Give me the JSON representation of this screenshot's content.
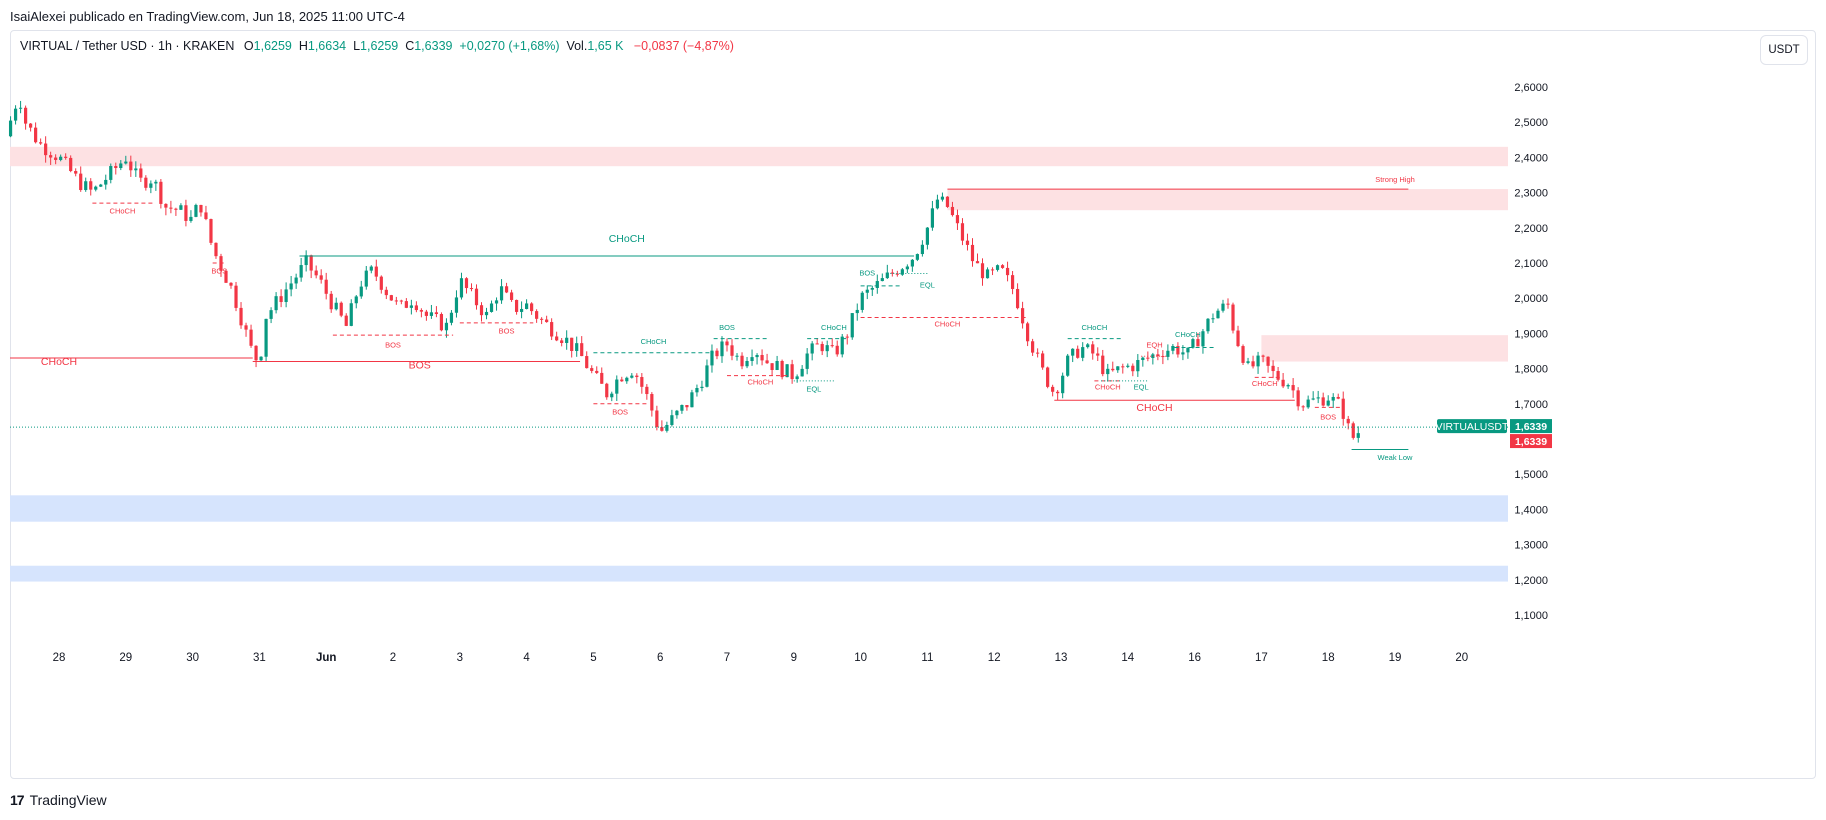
{
  "publisher": "IsaiAlexei publicado en TradingView.com, Jun 18, 2025 11:00 UTC-4",
  "legend": {
    "symbol": "VIRTUAL / Tether USD · 1h · KRAKEN",
    "o_label": "O",
    "o": "1,6259",
    "h_label": "H",
    "h": "1,6634",
    "l_label": "L",
    "l": "1,6259",
    "c_label": "C",
    "c": "1,6339",
    "change": "+0,0270 (+1,68%)",
    "vol_label": "Vol.",
    "vol": "1,65 K",
    "vol_change": "−0,0837 (−4,87%)"
  },
  "unit_button": "USDT",
  "footer": {
    "logo_glyph": "17",
    "brand": "TradingView"
  },
  "colors": {
    "up": "#089981",
    "down": "#f23645",
    "supply": "#fde1e3",
    "demand": "#d6e4fd",
    "grid": "#e0e3eb"
  },
  "chart_data": {
    "type": "candlestick",
    "ylim": [
      1.0,
      2.7
    ],
    "y_ticks": [
      {
        "value": 2.6,
        "label": "2,6000"
      },
      {
        "value": 2.5,
        "label": "2,5000"
      },
      {
        "value": 2.4,
        "label": "2,4000"
      },
      {
        "value": 2.3,
        "label": "2,3000"
      },
      {
        "value": 2.2,
        "label": "2,2000"
      },
      {
        "value": 2.1,
        "label": "2,1000"
      },
      {
        "value": 2.0,
        "label": "2,0000"
      },
      {
        "value": 1.9,
        "label": "1,9000"
      },
      {
        "value": 1.8,
        "label": "1,8000"
      },
      {
        "value": 1.7,
        "label": "1,7000"
      },
      {
        "value": 1.6,
        "label": "1,6000"
      },
      {
        "value": 1.5,
        "label": "1,5000"
      },
      {
        "value": 1.4,
        "label": "1,4000"
      },
      {
        "value": 1.3,
        "label": "1,3000"
      },
      {
        "value": 1.2,
        "label": "1,2000"
      },
      {
        "value": 1.1,
        "label": "1,1000"
      }
    ],
    "x_ticks": [
      {
        "t": 0,
        "label": "28"
      },
      {
        "t": 1,
        "label": "29"
      },
      {
        "t": 2,
        "label": "30"
      },
      {
        "t": 3,
        "label": "31"
      },
      {
        "t": 4,
        "label": "Jun"
      },
      {
        "t": 5,
        "label": "2"
      },
      {
        "t": 6,
        "label": "3"
      },
      {
        "t": 7,
        "label": "4"
      },
      {
        "t": 8,
        "label": "5"
      },
      {
        "t": 9,
        "label": "6"
      },
      {
        "t": 10,
        "label": "7"
      },
      {
        "t": 11,
        "label": "9"
      },
      {
        "t": 12,
        "label": "10"
      },
      {
        "t": 13,
        "label": "11"
      },
      {
        "t": 14,
        "label": "12"
      },
      {
        "t": 15,
        "label": "13"
      },
      {
        "t": 16,
        "label": "14"
      },
      {
        "t": 17,
        "label": "16"
      },
      {
        "t": 18,
        "label": "17"
      },
      {
        "t": 19,
        "label": "18"
      },
      {
        "t": 20,
        "label": "19"
      },
      {
        "t": 21,
        "label": "20"
      }
    ],
    "price_path": [
      [
        -0.8,
        2.46
      ],
      [
        -0.6,
        2.58
      ],
      [
        -0.5,
        2.5
      ],
      [
        -0.3,
        2.44
      ],
      [
        0.0,
        2.4
      ],
      [
        0.3,
        2.33
      ],
      [
        0.5,
        2.3
      ],
      [
        0.8,
        2.36
      ],
      [
        1.0,
        2.4
      ],
      [
        1.2,
        2.33
      ],
      [
        1.4,
        2.34
      ],
      [
        1.6,
        2.26
      ],
      [
        1.8,
        2.25
      ],
      [
        2.0,
        2.22
      ],
      [
        2.1,
        2.28
      ],
      [
        2.3,
        2.14
      ],
      [
        2.4,
        2.1
      ],
      [
        2.6,
        2.02
      ],
      [
        2.8,
        1.9
      ],
      [
        2.9,
        1.84
      ],
      [
        3.0,
        1.82
      ],
      [
        3.1,
        1.95
      ],
      [
        3.3,
        2.0
      ],
      [
        3.5,
        2.05
      ],
      [
        3.7,
        2.1
      ],
      [
        3.9,
        2.05
      ],
      [
        4.1,
        1.98
      ],
      [
        4.3,
        1.92
      ],
      [
        4.5,
        2.04
      ],
      [
        4.7,
        2.08
      ],
      [
        4.9,
        2.02
      ],
      [
        5.1,
        1.97
      ],
      [
        5.3,
        2.0
      ],
      [
        5.5,
        1.95
      ],
      [
        5.8,
        1.92
      ],
      [
        6.0,
        2.05
      ],
      [
        6.2,
        2.0
      ],
      [
        6.4,
        1.95
      ],
      [
        6.6,
        2.03
      ],
      [
        6.8,
        1.97
      ],
      [
        7.0,
        1.98
      ],
      [
        7.2,
        1.94
      ],
      [
        7.4,
        1.91
      ],
      [
        7.6,
        1.88
      ],
      [
        7.8,
        1.84
      ],
      [
        8.0,
        1.78
      ],
      [
        8.2,
        1.73
      ],
      [
        8.4,
        1.78
      ],
      [
        8.6,
        1.8
      ],
      [
        8.8,
        1.72
      ],
      [
        9.0,
        1.62
      ],
      [
        9.2,
        1.66
      ],
      [
        9.4,
        1.7
      ],
      [
        9.6,
        1.76
      ],
      [
        9.8,
        1.84
      ],
      [
        10.0,
        1.87
      ],
      [
        10.2,
        1.82
      ],
      [
        10.4,
        1.86
      ],
      [
        10.6,
        1.82
      ],
      [
        10.8,
        1.8
      ],
      [
        11.0,
        1.78
      ],
      [
        11.2,
        1.84
      ],
      [
        11.4,
        1.87
      ],
      [
        11.6,
        1.84
      ],
      [
        11.8,
        1.9
      ],
      [
        12.0,
        2.0
      ],
      [
        12.2,
        2.03
      ],
      [
        12.4,
        2.06
      ],
      [
        12.6,
        2.09
      ],
      [
        12.8,
        2.12
      ],
      [
        13.0,
        2.2
      ],
      [
        13.15,
        2.28
      ],
      [
        13.3,
        2.26
      ],
      [
        13.5,
        2.18
      ],
      [
        13.7,
        2.1
      ],
      [
        13.9,
        2.06
      ],
      [
        14.1,
        2.08
      ],
      [
        14.3,
        2.02
      ],
      [
        14.5,
        1.9
      ],
      [
        14.7,
        1.8
      ],
      [
        14.9,
        1.73
      ],
      [
        15.1,
        1.82
      ],
      [
        15.3,
        1.86
      ],
      [
        15.5,
        1.84
      ],
      [
        15.7,
        1.78
      ],
      [
        15.9,
        1.8
      ],
      [
        16.1,
        1.81
      ],
      [
        16.3,
        1.83
      ],
      [
        16.5,
        1.85
      ],
      [
        16.7,
        1.86
      ],
      [
        16.9,
        1.84
      ],
      [
        17.1,
        1.9
      ],
      [
        17.3,
        1.96
      ],
      [
        17.5,
        1.98
      ],
      [
        17.6,
        1.9
      ],
      [
        17.8,
        1.8
      ],
      [
        18.0,
        1.82
      ],
      [
        18.2,
        1.78
      ],
      [
        18.4,
        1.76
      ],
      [
        18.6,
        1.7
      ],
      [
        18.8,
        1.71
      ],
      [
        19.0,
        1.72
      ],
      [
        19.2,
        1.69
      ],
      [
        19.35,
        1.6
      ],
      [
        19.5,
        1.63
      ]
    ],
    "zones": [
      {
        "kind": "supply",
        "t0": -0.8,
        "t1": 21.9,
        "y0": 2.375,
        "y1": 2.43
      },
      {
        "kind": "supply",
        "t0": 13.3,
        "t1": 21.9,
        "y0": 2.25,
        "y1": 2.31
      },
      {
        "kind": "supply",
        "t0": 18.0,
        "t1": 21.9,
        "y0": 1.82,
        "y1": 1.895
      },
      {
        "kind": "demand",
        "t0": -0.8,
        "t1": 21.9,
        "y0": 1.365,
        "y1": 1.44
      },
      {
        "kind": "demand",
        "t0": -0.8,
        "t1": 21.9,
        "y0": 1.195,
        "y1": 1.24
      }
    ],
    "structure_lines": [
      {
        "t0": -0.8,
        "t1": 2.9,
        "y": 1.83,
        "color": "down",
        "style": "solid",
        "label": "CHoCH",
        "lt": 0.0,
        "ly": 1.81
      },
      {
        "t0": 2.9,
        "t1": 7.8,
        "y": 1.82,
        "color": "down",
        "style": "solid",
        "label": "BOS",
        "lt": 5.4,
        "ly": 1.8
      },
      {
        "t0": 3.6,
        "t1": 12.8,
        "y": 2.12,
        "color": "up",
        "style": "solid",
        "label": "CHoCH",
        "lt": 8.5,
        "ly": 2.16
      },
      {
        "t0": 13.3,
        "t1": 20.2,
        "y": 2.31,
        "color": "down",
        "style": "solid",
        "label": "Strong High",
        "lt": 20.0,
        "ly": 2.33
      },
      {
        "t0": 14.9,
        "t1": 18.5,
        "y": 1.71,
        "color": "down",
        "style": "solid",
        "label": "CHoCH",
        "lt": 16.4,
        "ly": 1.68
      },
      {
        "t0": 19.35,
        "t1": 20.2,
        "y": 1.57,
        "color": "up",
        "style": "solid",
        "label": "Weak Low",
        "lt": 20.0,
        "ly": 1.54
      },
      {
        "t0": 0.5,
        "t1": 1.4,
        "y": 2.27,
        "color": "down",
        "style": "dashed",
        "label": "CHoCH",
        "lt": 0.95,
        "ly": 2.24
      },
      {
        "t0": 2.3,
        "t1": 2.5,
        "y": 2.1,
        "color": "down",
        "style": "dashed",
        "label": "BOS",
        "lt": 2.4,
        "ly": 2.07
      },
      {
        "t0": 4.1,
        "t1": 5.9,
        "y": 1.895,
        "color": "down",
        "style": "dashed",
        "label": "BOS",
        "lt": 5.0,
        "ly": 1.86
      },
      {
        "t0": 6.0,
        "t1": 7.1,
        "y": 1.93,
        "color": "down",
        "style": "dashed",
        "label": "BOS",
        "lt": 6.7,
        "ly": 1.9
      },
      {
        "t0": 8.0,
        "t1": 8.8,
        "y": 1.7,
        "color": "down",
        "style": "dashed",
        "label": "BOS",
        "lt": 8.4,
        "ly": 1.67
      },
      {
        "t0": 8.0,
        "t1": 9.8,
        "y": 1.845,
        "color": "up",
        "style": "dashed",
        "label": "CHoCH",
        "lt": 8.9,
        "ly": 1.87
      },
      {
        "t0": 9.8,
        "t1": 10.6,
        "y": 1.885,
        "color": "up",
        "style": "dashed",
        "label": "BOS",
        "lt": 10.0,
        "ly": 1.91
      },
      {
        "t0": 10.0,
        "t1": 10.9,
        "y": 1.78,
        "color": "down",
        "style": "dashed",
        "label": "CHoCH",
        "lt": 10.5,
        "ly": 1.755
      },
      {
        "t0": 11.0,
        "t1": 11.6,
        "y": 1.765,
        "color": "up",
        "style": "dotted",
        "label": "EQL",
        "lt": 11.3,
        "ly": 1.735
      },
      {
        "t0": 11.2,
        "t1": 11.8,
        "y": 1.885,
        "color": "up",
        "style": "dashed",
        "label": "CHoCH",
        "lt": 11.6,
        "ly": 1.91
      },
      {
        "t0": 12.0,
        "t1": 12.6,
        "y": 2.035,
        "color": "up",
        "style": "dashed",
        "label": "BOS",
        "lt": 12.1,
        "ly": 2.065
      },
      {
        "t0": 12.4,
        "t1": 13.0,
        "y": 2.07,
        "color": "up",
        "style": "dotted",
        "label": "EQL",
        "lt": 13.0,
        "ly": 2.03
      },
      {
        "t0": 12.0,
        "t1": 14.5,
        "y": 1.945,
        "color": "down",
        "style": "dashed",
        "label": "CHoCH",
        "lt": 13.3,
        "ly": 1.92
      },
      {
        "t0": 15.1,
        "t1": 15.9,
        "y": 1.885,
        "color": "up",
        "style": "dashed",
        "label": "CHoCH",
        "lt": 15.5,
        "ly": 1.91
      },
      {
        "t0": 15.5,
        "t1": 15.9,
        "y": 1.765,
        "color": "down",
        "style": "dashed",
        "label": "CHoCH",
        "lt": 15.7,
        "ly": 1.74
      },
      {
        "t0": 15.6,
        "t1": 16.3,
        "y": 1.765,
        "color": "up",
        "style": "dotted",
        "label": "EQL",
        "lt": 16.2,
        "ly": 1.74
      },
      {
        "t0": 16.2,
        "t1": 16.6,
        "y": 1.835,
        "color": "down",
        "style": "dotted",
        "label": "EQH",
        "lt": 16.4,
        "ly": 1.86
      },
      {
        "t0": 16.7,
        "t1": 17.3,
        "y": 1.86,
        "color": "up",
        "style": "dashed",
        "label": "CHoCH",
        "lt": 16.9,
        "ly": 1.89
      },
      {
        "t0": 17.9,
        "t1": 18.3,
        "y": 1.775,
        "color": "down",
        "style": "dashed",
        "label": "CHoCH",
        "lt": 18.05,
        "ly": 1.75
      },
      {
        "t0": 18.8,
        "t1": 19.2,
        "y": 1.69,
        "color": "down",
        "style": "dashed",
        "label": "BOS",
        "lt": 19.0,
        "ly": 1.655
      }
    ],
    "last_price": 1.6339,
    "price_tags": [
      {
        "label": "VIRTUALUSDT",
        "value": "1,6339",
        "color": "up"
      },
      {
        "label": "",
        "value": "1,6339",
        "color": "down"
      }
    ]
  }
}
